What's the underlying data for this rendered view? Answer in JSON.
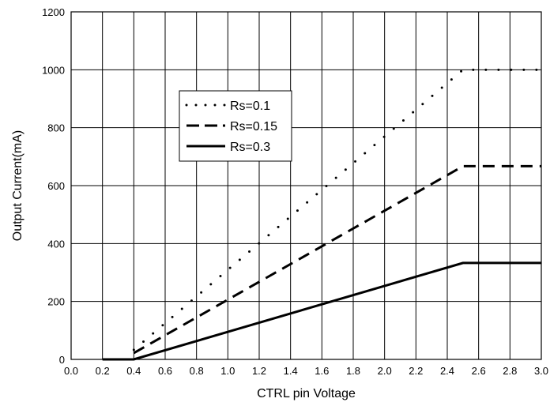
{
  "chart_data": {
    "type": "line",
    "xlabel": "CTRL pin Voltage",
    "ylabel": "Output Current(mA)",
    "xlim": [
      0.0,
      3.0
    ],
    "ylim": [
      0,
      1200
    ],
    "x_ticks": [
      "0.0",
      "0.2",
      "0.4",
      "0.6",
      "0.8",
      "1.0",
      "1.2",
      "1.4",
      "1.6",
      "1.8",
      "2.0",
      "2.2",
      "2.4",
      "2.6",
      "2.8",
      "3.0"
    ],
    "y_ticks": [
      "0",
      "200",
      "400",
      "600",
      "800",
      "1000",
      "1200"
    ],
    "grid": true,
    "legend_position": "upper-left-center",
    "series": [
      {
        "name": "Rs=0.1",
        "style": "dotted",
        "x": [
          0.4,
          2.5,
          3.0
        ],
        "y": [
          33,
          1000,
          1000
        ]
      },
      {
        "name": "Rs=0.15",
        "style": "dashed",
        "x": [
          0.4,
          2.5,
          3.0
        ],
        "y": [
          22,
          667,
          667
        ]
      },
      {
        "name": "Rs=0.3",
        "style": "solid",
        "x": [
          0.2,
          0.4,
          2.5,
          3.0
        ],
        "y": [
          0,
          0,
          333,
          333
        ]
      }
    ],
    "colors": {
      "line": "#000000",
      "grid": "#000000",
      "background": "#ffffff"
    }
  }
}
